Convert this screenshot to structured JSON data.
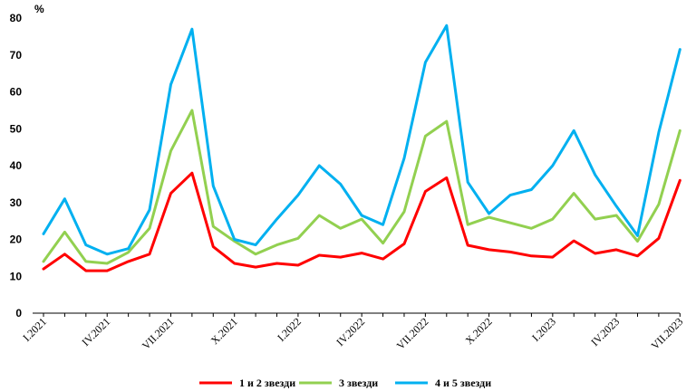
{
  "chart_data": {
    "type": "line",
    "unit_label": "%",
    "ylim": [
      0,
      80
    ],
    "yticks": [
      0,
      10,
      20,
      30,
      40,
      50,
      60,
      70,
      80
    ],
    "grid": false,
    "legend_position": "bottom",
    "x_labels": [
      "I.2021",
      "IV.2021",
      "VII.2021",
      "X.2021",
      "I.2022",
      "IV.2022",
      "VII.2022",
      "X.2022",
      "I.2023",
      "IV.2023",
      "VII.2023"
    ],
    "x_label_every": 3,
    "series": [
      {
        "name": "1 и 2 звезди",
        "color": "#ff0000",
        "values": [
          12,
          16,
          11.5,
          11.5,
          14,
          16,
          32.5,
          38,
          18,
          13.5,
          12.5,
          13.5,
          13,
          15.7,
          15.2,
          16.3,
          14.7,
          18.8,
          33,
          36.7,
          18.4,
          17.2,
          16.6,
          15.5,
          15.2,
          19.6,
          16.2,
          17.2,
          15.5,
          20.3,
          36
        ]
      },
      {
        "name": "3 звезди",
        "color": "#92d050",
        "values": [
          14,
          22,
          14,
          13.5,
          16.5,
          23,
          44,
          55,
          23.5,
          19.5,
          16,
          18.5,
          20.3,
          26.5,
          23,
          25.5,
          19,
          27.5,
          48,
          52,
          24,
          26,
          24.5,
          23,
          25.5,
          32.5,
          25.5,
          26.5,
          19.5,
          29.5,
          49.5
        ]
      },
      {
        "name": "4 и 5 звезди",
        "color": "#00b0f0",
        "values": [
          21.5,
          31,
          18.5,
          16,
          17.5,
          28,
          62,
          77,
          34.5,
          20,
          18.5,
          25.5,
          32,
          40,
          35,
          26.5,
          24,
          42,
          68,
          78,
          35.5,
          27,
          32,
          33.5,
          40,
          49.5,
          37.5,
          29,
          21,
          49,
          71.5
        ]
      }
    ]
  }
}
